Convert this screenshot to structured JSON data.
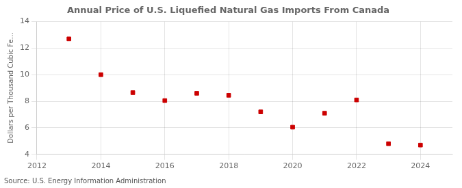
{
  "chart_data": {
    "type": "scatter",
    "title": "Annual Price of U.S. Liquefied Natural Gas Imports From Canada",
    "ylabel": "Dollars per Thousand Cubic Fe...",
    "annotations": [
      "Source: U.S. Energy Information Administration"
    ],
    "x": [
      2013,
      2014,
      2015,
      2016,
      2017,
      2018,
      2019,
      2020,
      2021,
      2022,
      2023,
      2024
    ],
    "values": [
      12.7,
      10.0,
      8.65,
      8.05,
      8.6,
      8.45,
      7.2,
      6.05,
      7.1,
      8.1,
      4.8,
      4.7
    ],
    "color": "#cc0000",
    "marker": "square",
    "xlim": [
      2012,
      2025
    ],
    "xticks": [
      2012,
      2014,
      2016,
      2018,
      2020,
      2022,
      2024
    ],
    "ylim": [
      4,
      14
    ],
    "yticks": [
      4,
      6,
      8,
      10,
      12,
      14
    ],
    "grid": true
  }
}
